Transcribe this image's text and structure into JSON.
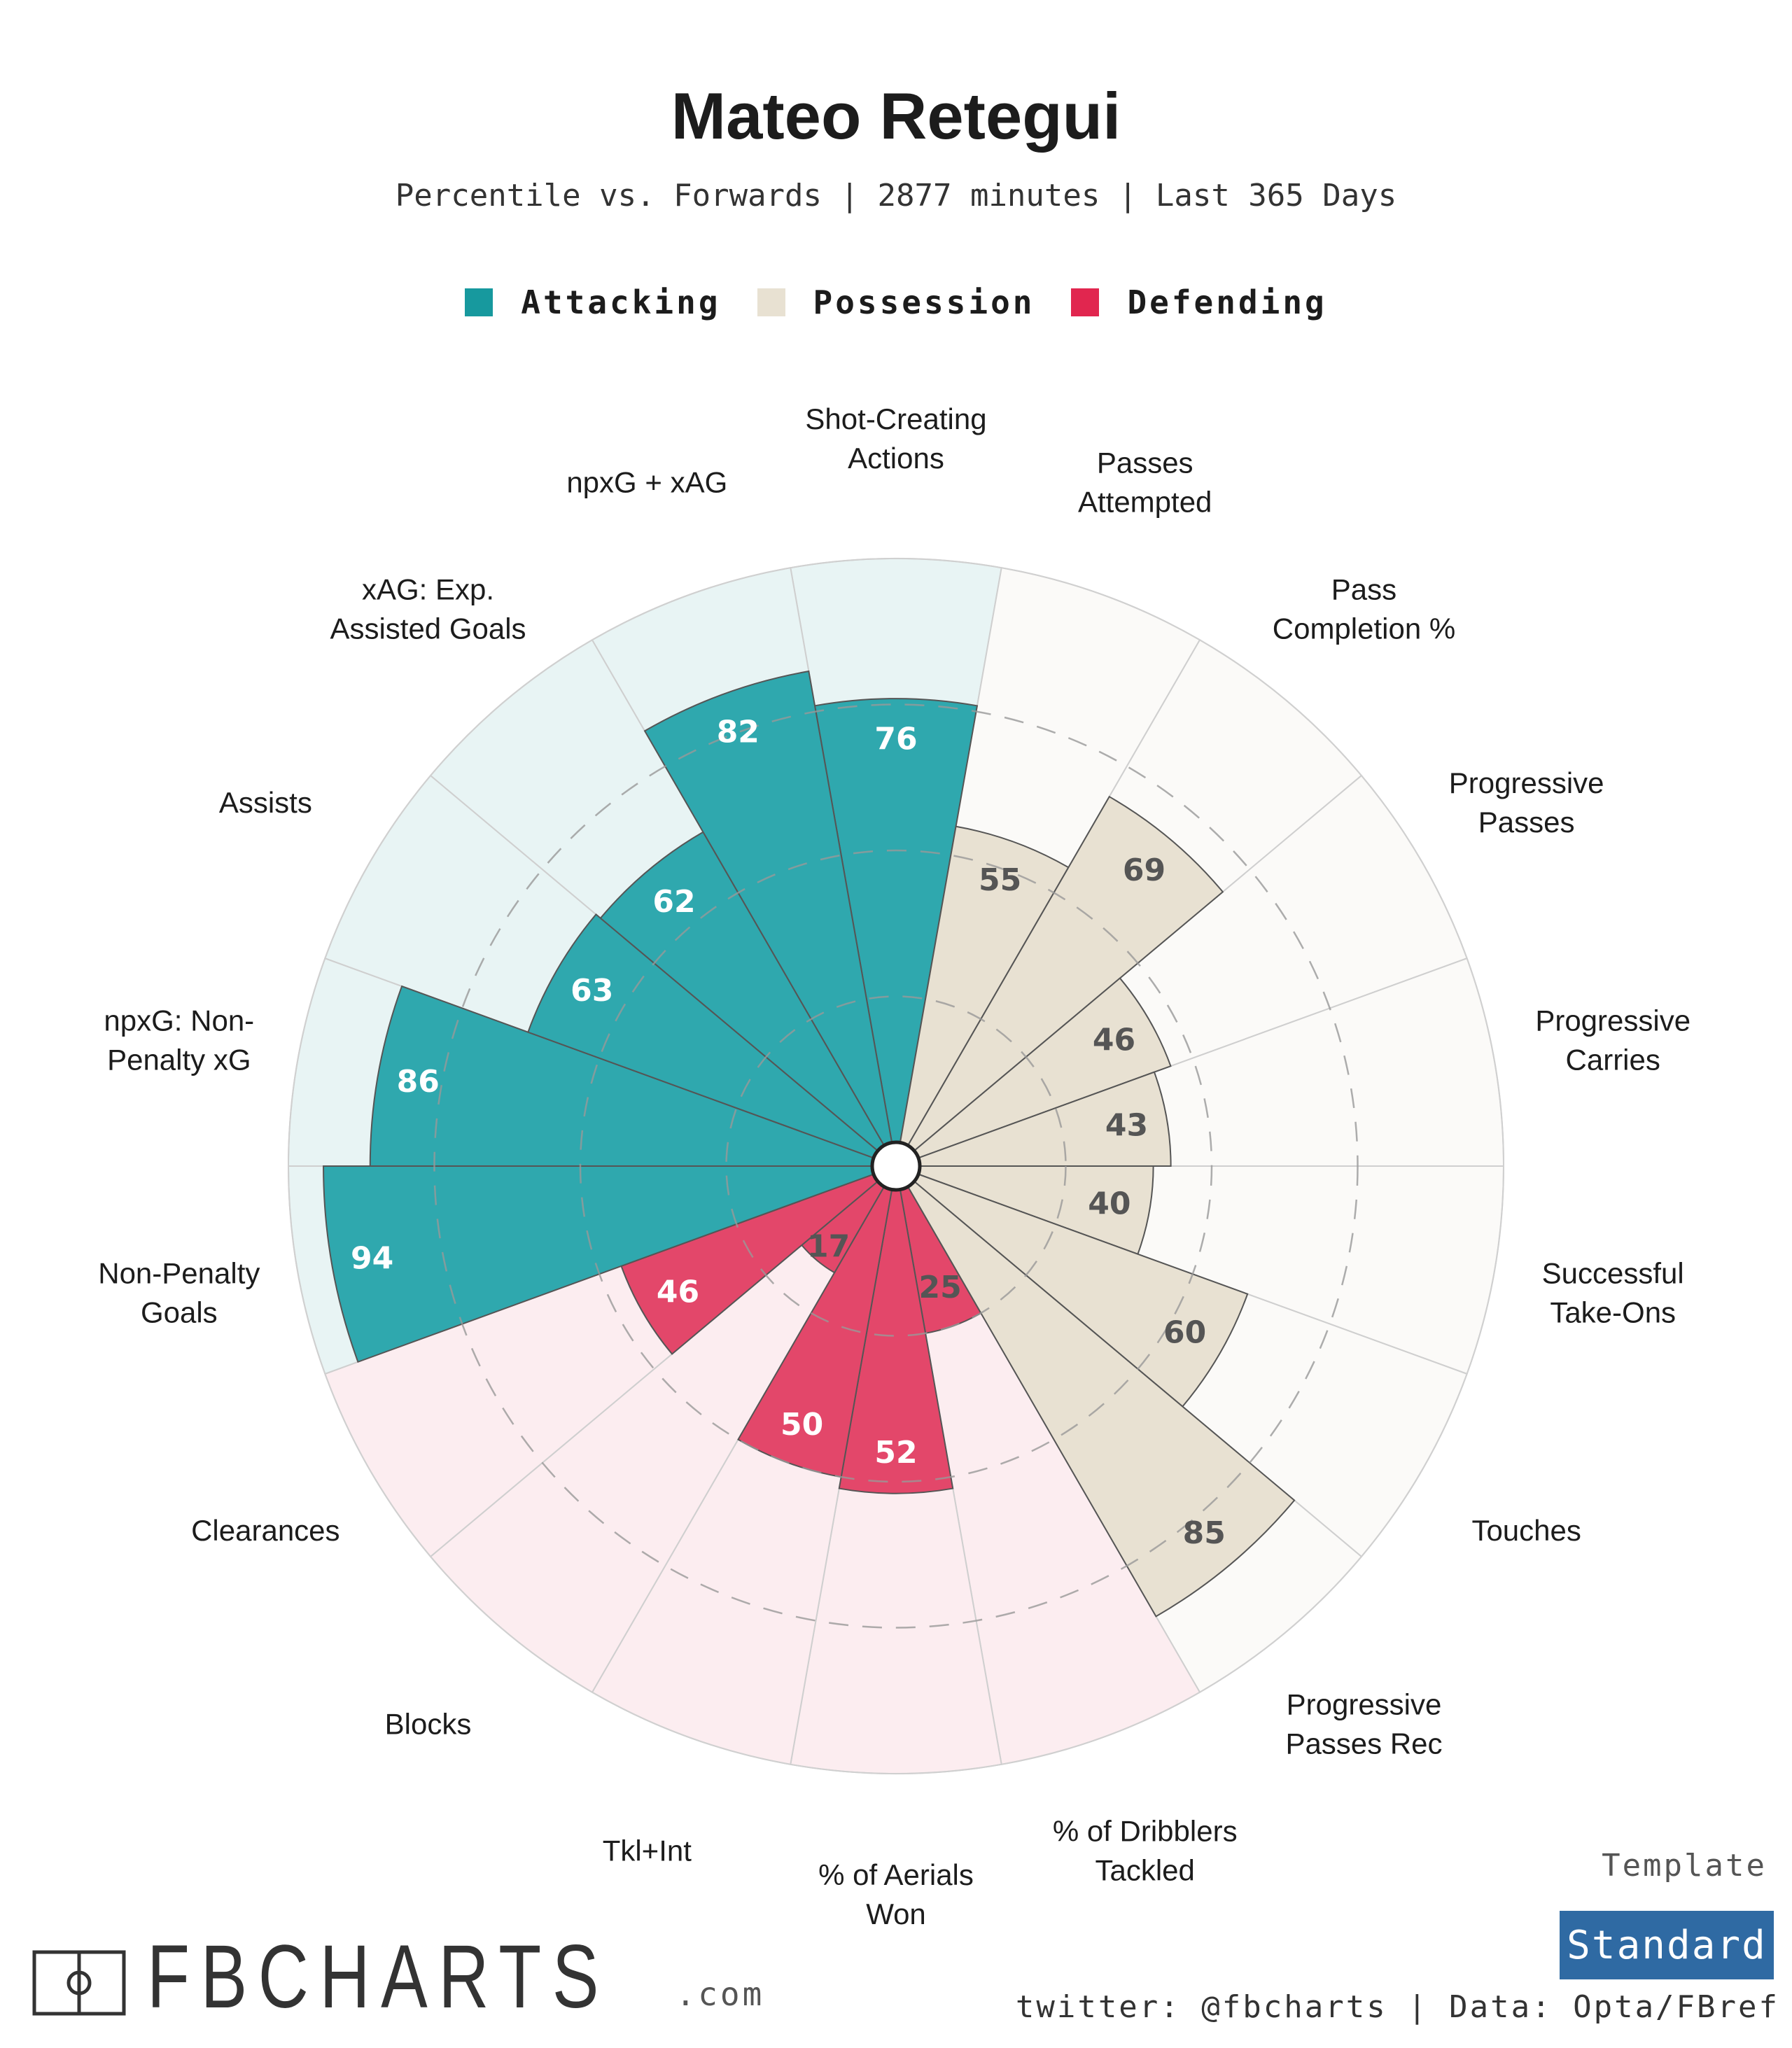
{
  "header": {
    "title": "Mateo Retegui",
    "subtitle": "Percentile vs. Forwards | 2877 minutes | Last 365 Days"
  },
  "legend": [
    {
      "label": "Attacking",
      "color": "#17999e"
    },
    {
      "label": "Possession",
      "color": "#e8e1d2"
    },
    {
      "label": "Defending",
      "color": "#e1264f"
    }
  ],
  "chart_data": {
    "type": "polar-bar",
    "title": "Mateo Retegui",
    "subtitle": "Percentile vs. Forwards | 2877 minutes | Last 365 Days",
    "rmax": 100,
    "gridlines": [
      25,
      50,
      75
    ],
    "categories": [
      {
        "label": "Shot-Creating\nActions",
        "value": 76,
        "group": "Attacking"
      },
      {
        "label": "Passes\nAttempted",
        "value": 55,
        "group": "Possession"
      },
      {
        "label": "Pass\nCompletion %",
        "value": 69,
        "group": "Possession"
      },
      {
        "label": "Progressive\nPasses",
        "value": 46,
        "group": "Possession"
      },
      {
        "label": "Progressive\nCarries",
        "value": 43,
        "group": "Possession"
      },
      {
        "label": "Successful\nTake-Ons",
        "value": 40,
        "group": "Possession"
      },
      {
        "label": "Touches",
        "value": 60,
        "group": "Possession"
      },
      {
        "label": "Progressive\nPasses Rec",
        "value": 85,
        "group": "Possession"
      },
      {
        "label": "% of Dribblers\nTackled",
        "value": 25,
        "group": "Defending"
      },
      {
        "label": "% of Aerials\nWon",
        "value": 52,
        "group": "Defending"
      },
      {
        "label": "Tkl+Int",
        "value": 50,
        "group": "Defending"
      },
      {
        "label": "Blocks",
        "value": 17,
        "group": "Defending"
      },
      {
        "label": "Clearances",
        "value": 46,
        "group": "Defending"
      },
      {
        "label": "Non-Penalty\nGoals",
        "value": 94,
        "group": "Attacking"
      },
      {
        "label": "npxG: Non-\nPenalty xG",
        "value": 86,
        "group": "Attacking"
      },
      {
        "label": "Assists",
        "value": 63,
        "group": "Attacking"
      },
      {
        "label": "xAG: Exp.\nAssisted Goals",
        "value": 62,
        "group": "Attacking"
      },
      {
        "label": "npxG + xAG",
        "value": 82,
        "group": "Attacking"
      }
    ],
    "group_colors": {
      "Attacking": {
        "bar": "#2fa8ae",
        "bg": "#e8f4f4",
        "text": "#ffffff"
      },
      "Possession": {
        "bar": "#e8e1d2",
        "bg": "#fbfaf8",
        "text": "#555555"
      },
      "Defending": {
        "bar": "#e3476a",
        "bg": "#fcedf0",
        "text": "#ffffff"
      }
    }
  },
  "footer": {
    "template_label": "Template",
    "template_value": "Standard",
    "credits": "twitter: @fbcharts | Data: Opta/FBref",
    "brand_name": "FBCHARTS",
    "brand_suffix": ".com"
  }
}
